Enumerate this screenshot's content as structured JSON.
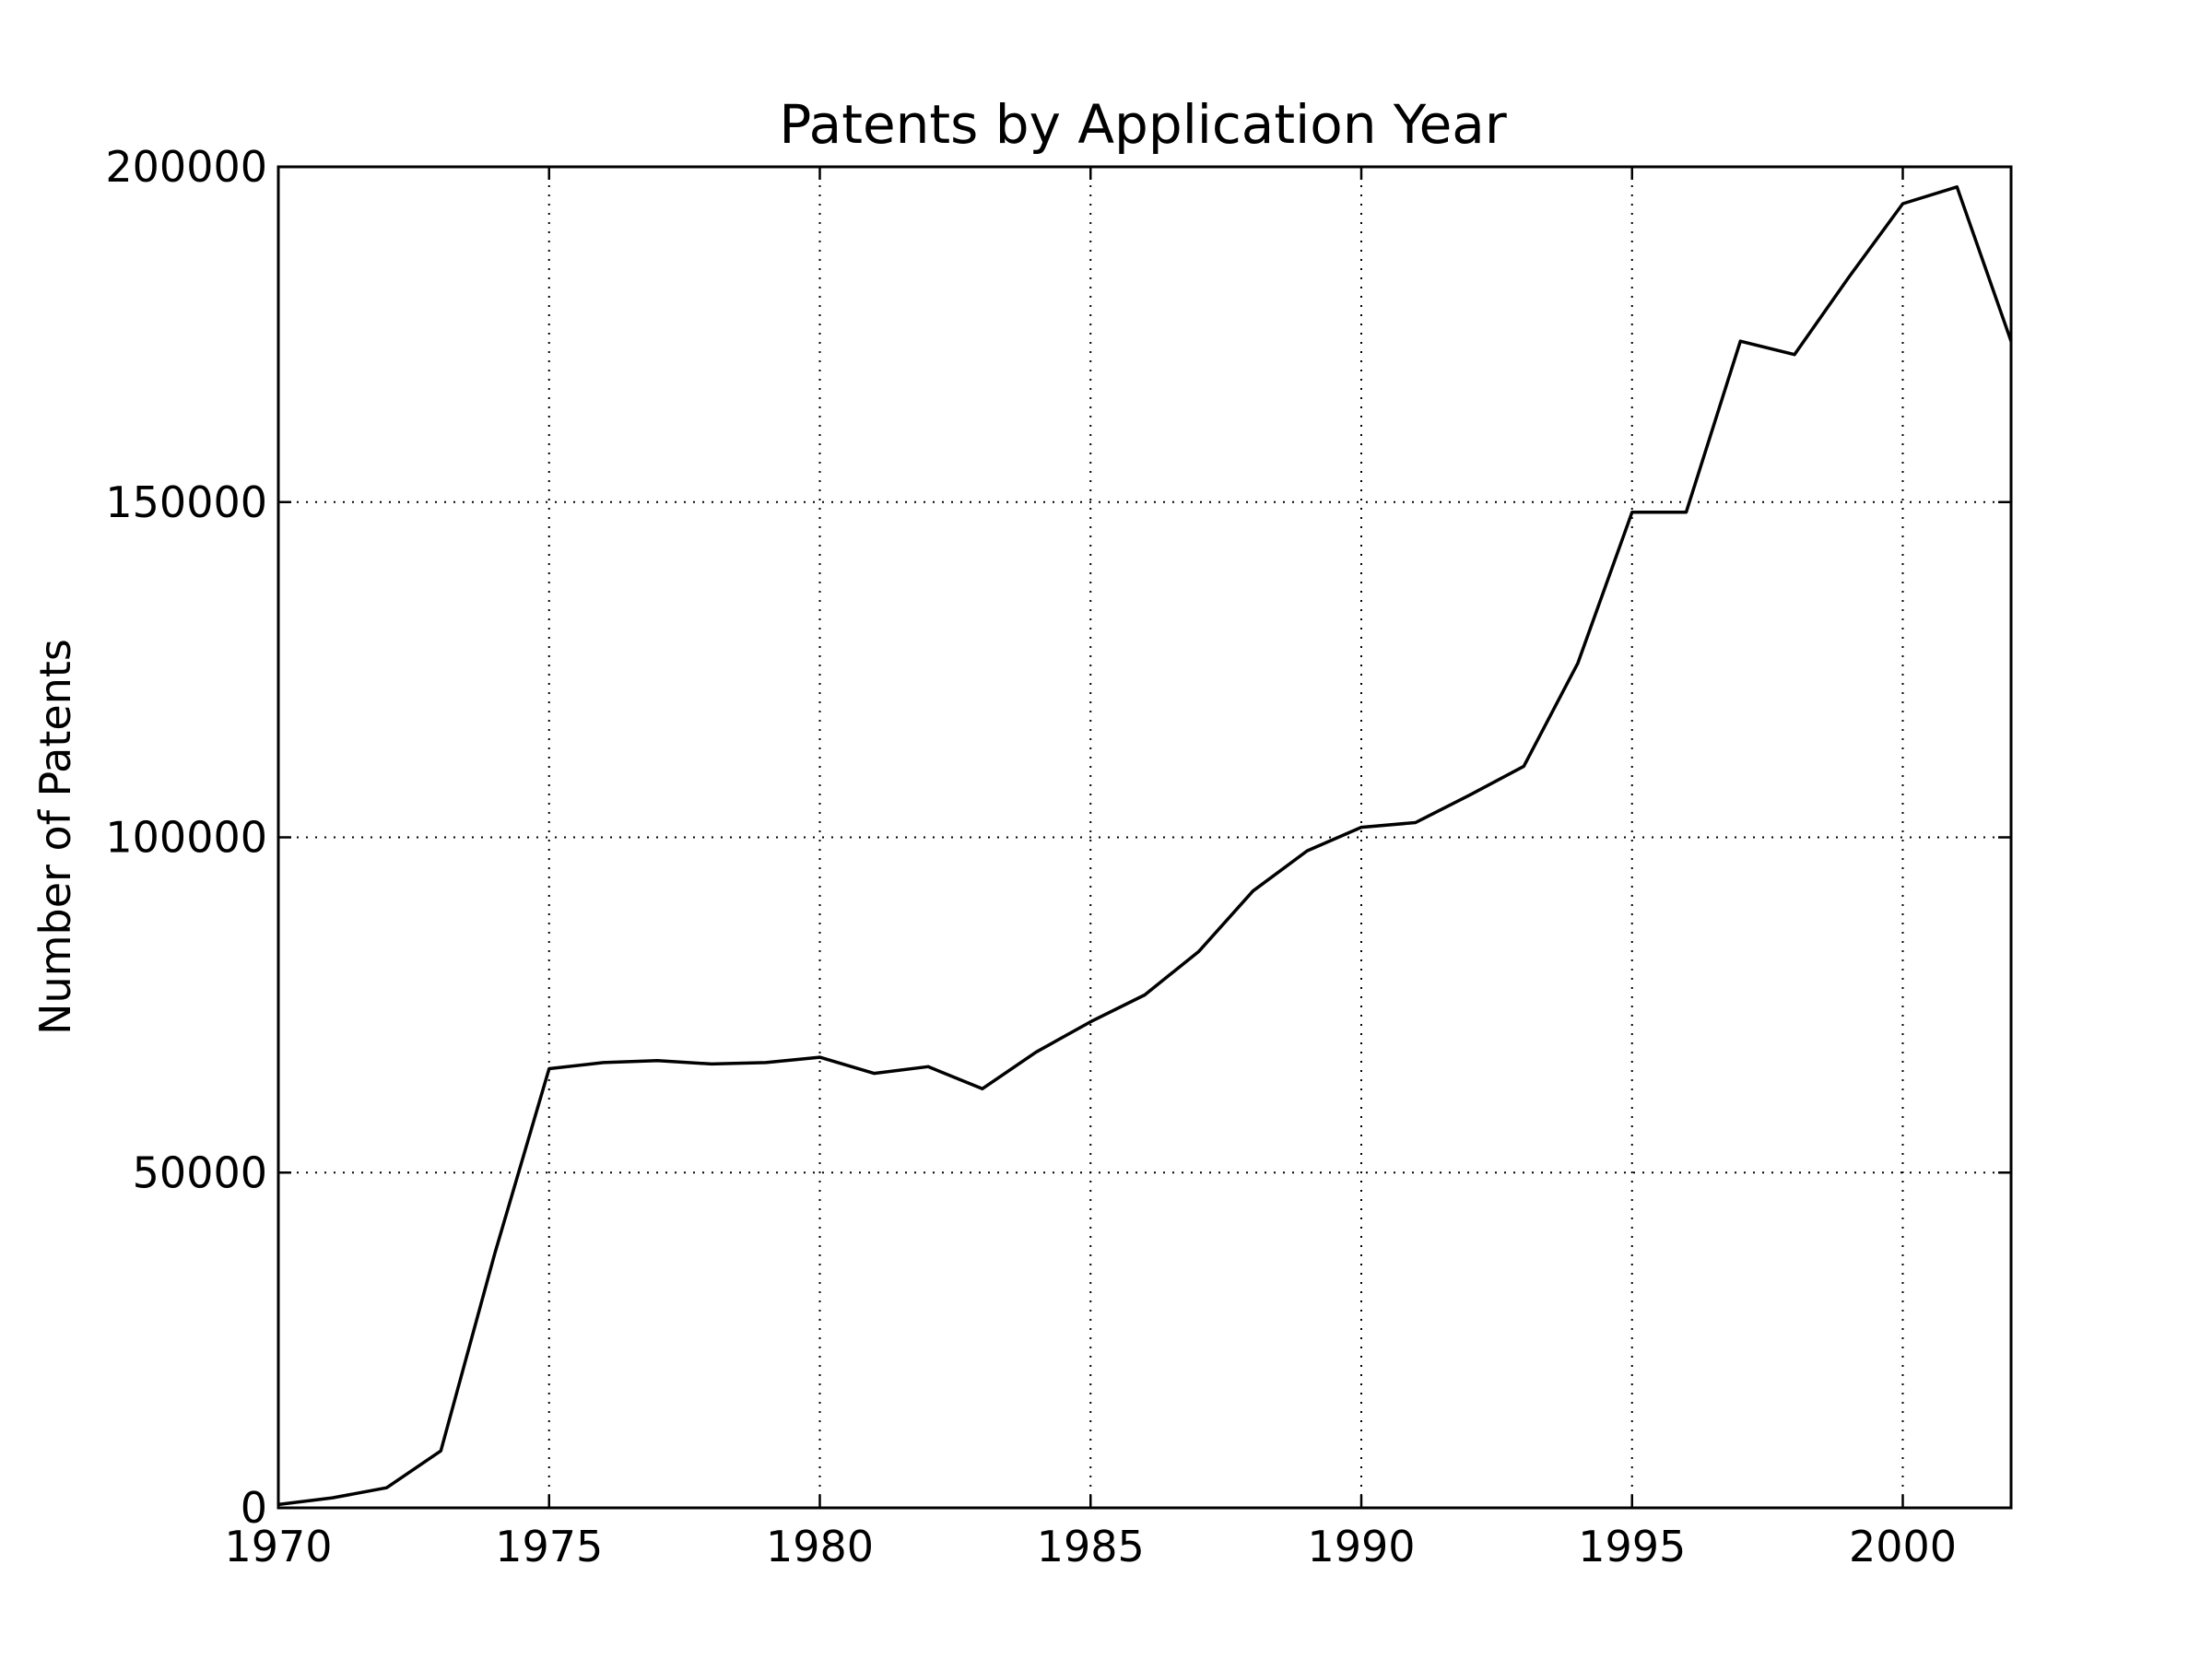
{
  "chart_data": {
    "type": "line",
    "title": "Patents by Application Year",
    "xlabel": "",
    "ylabel": "Number of Patents",
    "xlim": [
      1970,
      2002
    ],
    "ylim": [
      0,
      200000
    ],
    "xticks": [
      1970,
      1975,
      1980,
      1985,
      1990,
      1995,
      2000
    ],
    "yticks": [
      0,
      50000,
      100000,
      150000,
      200000
    ],
    "grid": true,
    "line_color": "#000000",
    "series": [
      {
        "x": [
          1970,
          1971,
          1972,
          1973,
          1974,
          1975,
          1976,
          1977,
          1978,
          1979,
          1980,
          1981,
          1982,
          1983,
          1984,
          1985,
          1986,
          1987,
          1988,
          1989,
          1990,
          1991,
          1992,
          1993,
          1994,
          1995,
          1996,
          1997,
          1998,
          1999,
          2000,
          2001,
          2002
        ],
        "y": [
          500,
          1500,
          3000,
          8500,
          38000,
          65500,
          66400,
          66700,
          66200,
          66400,
          67200,
          64800,
          65800,
          62500,
          68000,
          72500,
          76500,
          83000,
          92000,
          98000,
          101500,
          102200,
          106300,
          110600,
          126000,
          148500,
          148500,
          174000,
          172000,
          183500,
          194500,
          197000,
          174000
        ]
      }
    ]
  }
}
